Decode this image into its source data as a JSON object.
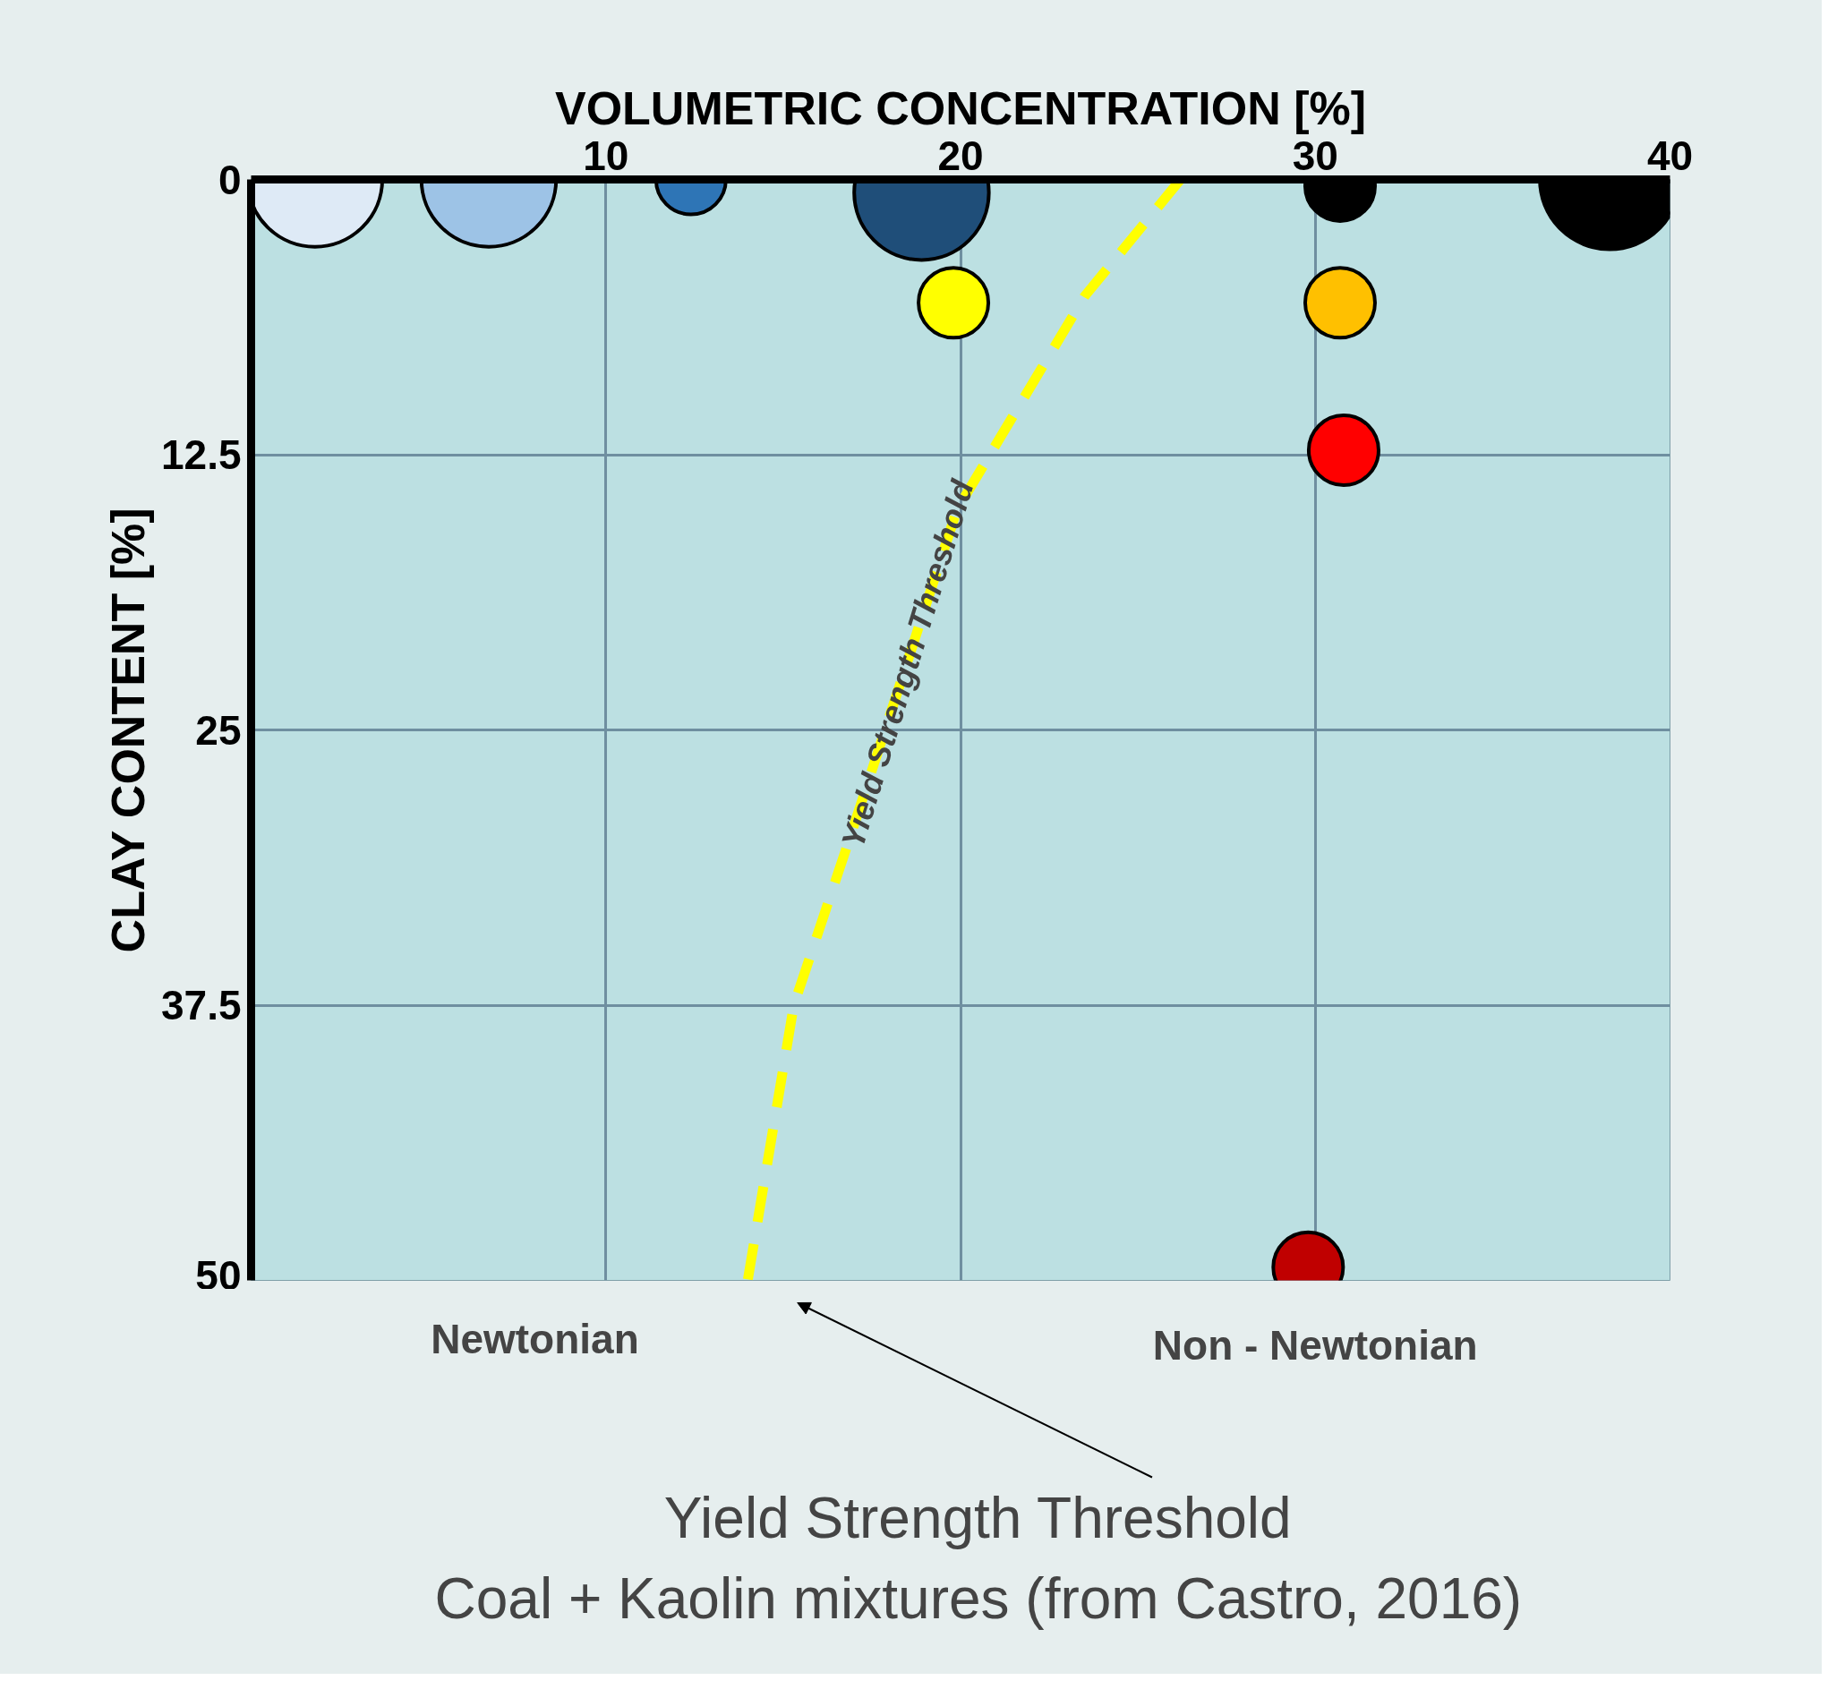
{
  "chart_data": {
    "type": "bubble",
    "xlabel": "VOLUMETRIC CONCENTRATION [%]",
    "ylabel": "CLAY CONTENT [%]",
    "series": [
      {
        "x": [
          1.8,
          6.7,
          12.4,
          18.9,
          19.8,
          30.7,
          38.3,
          30.7,
          30.8,
          29.8
        ],
        "values": [
          0,
          0,
          0,
          0.6,
          5.6,
          0.3,
          0,
          5.6,
          12.3,
          49.4
        ],
        "sizes": [
          0.93,
          0.93,
          0.25,
          0.93,
          0.25,
          0.25,
          1,
          0.25,
          0.25,
          0.25
        ],
        "colors": [
          "#deeaf6",
          "#9dc3e6",
          "#2e75b6",
          "#1f4e79",
          "#ffff00",
          "#000000",
          "#000000",
          "#ffc000",
          "#ff0000",
          "#c00000"
        ]
      },
      {
        "type": "line",
        "x": [
          26.2,
          23.5,
          19.9,
          16.9,
          15.3,
          14.0
        ],
        "values": [
          0,
          5.3,
          15,
          29.8,
          37.5,
          50
        ],
        "color": "#ffff00",
        "line_style": "dashed"
      }
    ],
    "xlim": [
      0,
      40
    ],
    "ylim": [
      50,
      0
    ],
    "xticks": [
      10,
      20,
      30,
      40
    ],
    "yticks": [
      0,
      12.5,
      25,
      37.5,
      50
    ],
    "grid": true,
    "annotations": [
      {
        "text": "Yield Strength Threshold",
        "x": 18.5,
        "y": 22
      },
      "Newtonian",
      "Non - Newtonian",
      "Yield Strength Threshold",
      "Coal + Kaolin mixtures (from Castro, 2016)"
    ]
  }
}
